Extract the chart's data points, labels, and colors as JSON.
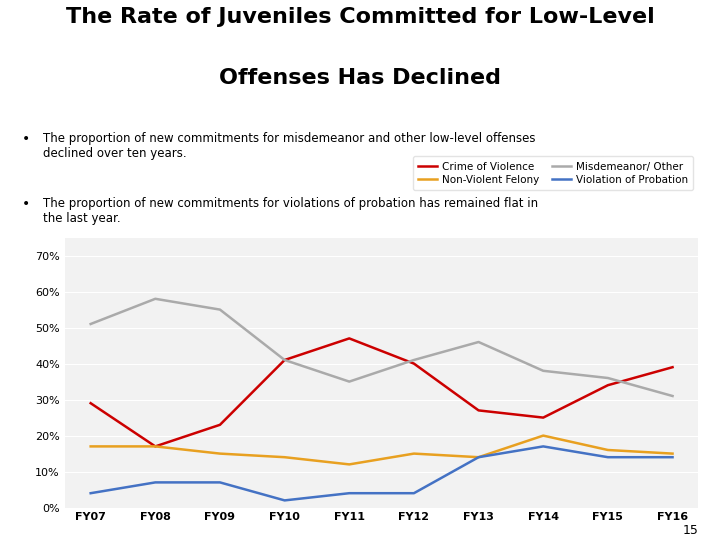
{
  "title_line1": "The Rate of Juveniles Committed for Low-Level",
  "title_line2": "Offenses Has Declined",
  "bullet1": "The proportion of new commitments for misdemeanor and other low-level offenses declined over ten years.",
  "bullet2": "The proportion of new commitments for violations of probation has remained flat in the last year.",
  "years": [
    "FY07",
    "FY08",
    "FY09",
    "FY10",
    "FY11",
    "FY12",
    "FY13",
    "FY14",
    "FY15",
    "FY16"
  ],
  "crime_of_violence": [
    0.29,
    0.17,
    0.23,
    0.41,
    0.47,
    0.4,
    0.27,
    0.25,
    0.34,
    0.39
  ],
  "non_violent_felony": [
    0.17,
    0.17,
    0.15,
    0.14,
    0.12,
    0.15,
    0.14,
    0.2,
    0.16,
    0.15
  ],
  "misdemeanor_other": [
    0.51,
    0.58,
    0.55,
    0.41,
    0.35,
    0.41,
    0.46,
    0.38,
    0.36,
    0.31
  ],
  "violation_of_probation": [
    0.04,
    0.07,
    0.07,
    0.02,
    0.04,
    0.04,
    0.14,
    0.17,
    0.14,
    0.14
  ],
  "color_violence": "#cc0000",
  "color_nonviolent": "#e8a020",
  "color_misdemeanor": "#aaaaaa",
  "color_probation": "#4472c4",
  "background_color": "#ffffff",
  "chart_bg": "#f2f2f2",
  "ylim": [
    0,
    0.75
  ],
  "yticks": [
    0.0,
    0.1,
    0.2,
    0.3,
    0.4,
    0.5,
    0.6,
    0.7
  ],
  "page_number": "15",
  "legend_row1": [
    "Crime of Violence",
    "Non-Violent Felony"
  ],
  "legend_row2": [
    "Misdemeanor/ Other",
    "Violation of Probation"
  ]
}
